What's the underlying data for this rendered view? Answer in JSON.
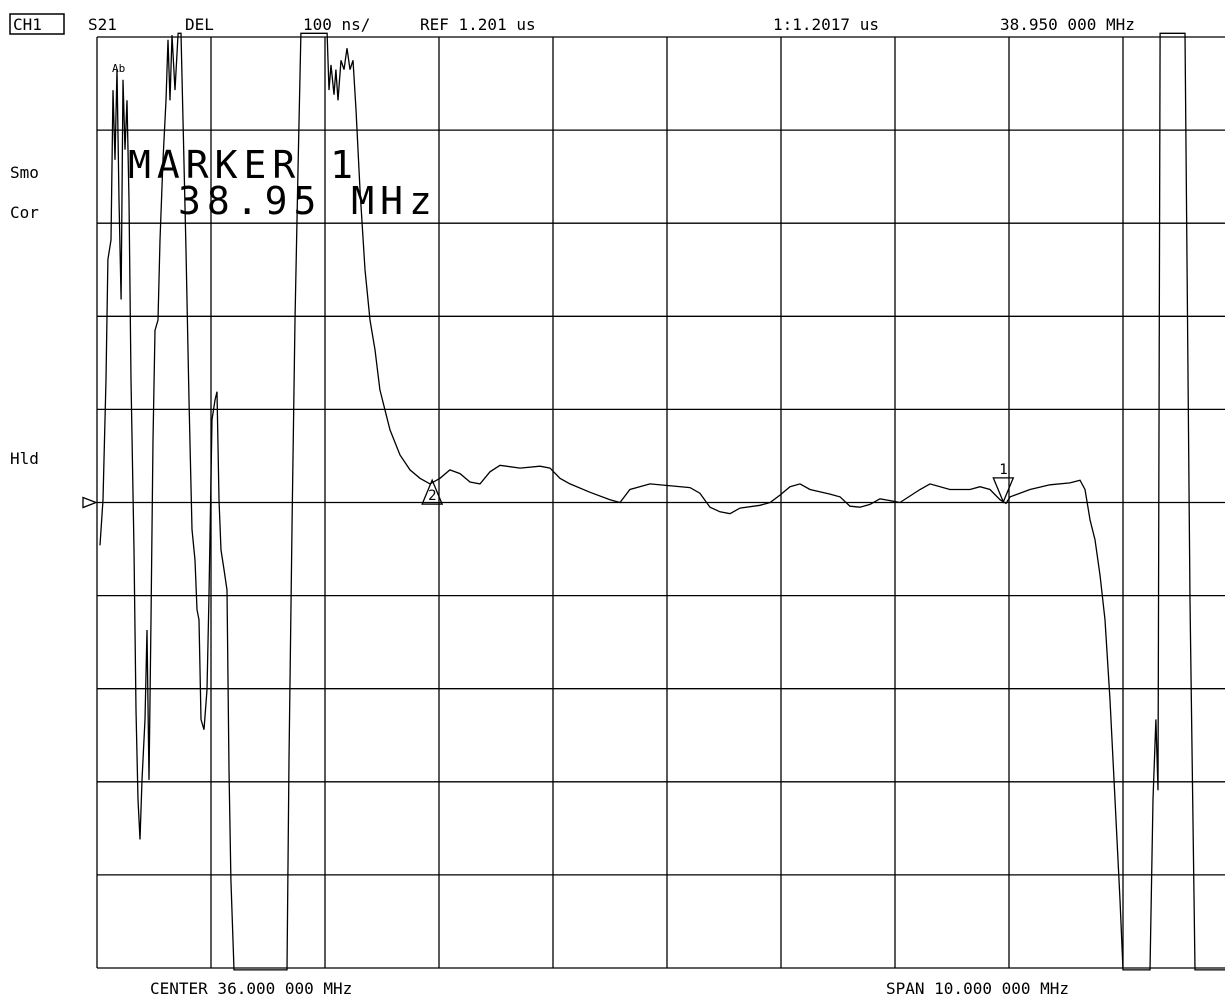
{
  "chart_data": {
    "type": "line",
    "header": {
      "channel": "CH1",
      "parameter": "S21",
      "format": "DEL",
      "scale": "100 ns/",
      "reference": "REF 1.201 us",
      "marker_readout": "1:1.2017 us",
      "marker_frequency": "38.950 000 MHz"
    },
    "status": [
      "Smo",
      "Cor",
      "Hld"
    ],
    "annotation_small": "Ab",
    "annotation": [
      "MARKER 1",
      "38.95 MHz"
    ],
    "footer": {
      "center": "CENTER 36.000 000 MHz",
      "span": "SPAN 10.000 000 MHz"
    },
    "color": "#000000",
    "ref_level": 1.201,
    "xlim": [
      31,
      41
    ],
    "ylim": [
      0.701,
      1.701
    ],
    "xticks": [
      31,
      32,
      33,
      34,
      35,
      36,
      37,
      38,
      39,
      40,
      41
    ],
    "yticks": [
      0.701,
      0.801,
      0.901,
      1.001,
      1.101,
      1.201,
      1.301,
      1.401,
      1.501,
      1.601,
      1.701
    ],
    "grid": true,
    "markers": [
      {
        "label": "1",
        "x": 38.95,
        "y": 1.2017,
        "direction": "down"
      },
      {
        "label": "2",
        "x": 33.94,
        "y": 1.225,
        "direction": "up"
      }
    ],
    "x": [
      31.026,
      31.053,
      31.079,
      31.096,
      31.123,
      31.14,
      31.158,
      31.175,
      31.193,
      31.211,
      31.228,
      31.246,
      31.263,
      31.281,
      31.298,
      31.325,
      31.342,
      31.36,
      31.377,
      31.395,
      31.421,
      31.439,
      31.456,
      31.474,
      31.491,
      31.509,
      31.535,
      31.553,
      31.579,
      31.605,
      31.623,
      31.64,
      31.658,
      31.684,
      31.711,
      31.737,
      31.754,
      31.781,
      31.807,
      31.833,
      31.86,
      31.877,
      31.895,
      31.912,
      31.939,
      31.965,
      31.982,
      32.009,
      32.035,
      32.053,
      32.07,
      32.088,
      32.114,
      32.14,
      32.158,
      32.175,
      32.202,
      32.667,
      32.684,
      32.711,
      32.737,
      32.763,
      32.789,
      33.018,
      33.035,
      33.053,
      33.079,
      33.096,
      33.114,
      33.14,
      33.167,
      33.193,
      33.219,
      33.246,
      33.272,
      33.307,
      33.351,
      33.395,
      33.439,
      33.482,
      33.57,
      33.658,
      33.746,
      33.833,
      33.921,
      34.009,
      34.096,
      34.184,
      34.272,
      34.36,
      34.447,
      34.535,
      34.711,
      34.886,
      34.974,
      35.061,
      35.149,
      35.325,
      35.5,
      35.588,
      35.675,
      35.851,
      36.202,
      36.289,
      36.377,
      36.465,
      36.553,
      36.64,
      36.816,
      36.904,
      36.991,
      37.079,
      37.167,
      37.254,
      37.43,
      37.518,
      37.605,
      37.693,
      37.781,
      37.868,
      38.044,
      38.219,
      38.307,
      38.482,
      38.658,
      38.746,
      38.833,
      38.921,
      38.974,
      39.009,
      39.184,
      39.36,
      39.535,
      39.623,
      39.667,
      39.711,
      39.754,
      39.798,
      39.842,
      39.886,
      39.93,
      39.974,
      40.0,
      40.237,
      40.263,
      40.289,
      40.307,
      40.325,
      40.544,
      40.588,
      40.632,
      40.895
    ],
    "values": [
      1.155,
      1.204,
      1.333,
      1.462,
      1.483,
      1.644,
      1.569,
      1.666,
      1.526,
      1.419,
      1.655,
      1.58,
      1.633,
      1.526,
      1.333,
      1.15,
      0.978,
      0.882,
      0.839,
      0.903,
      0.968,
      1.064,
      0.903,
      1.075,
      1.268,
      1.386,
      1.397,
      1.483,
      1.569,
      1.633,
      1.698,
      1.633,
      1.703,
      1.644,
      1.705,
      1.705,
      1.612,
      1.472,
      1.311,
      1.172,
      1.139,
      1.086,
      1.075,
      0.968,
      0.957,
      1.0,
      1.096,
      1.29,
      1.311,
      1.32,
      1.204,
      1.15,
      1.129,
      1.107,
      0.914,
      0.796,
      0.699,
      0.699,
      0.925,
      1.182,
      1.397,
      1.558,
      1.705,
      1.705,
      1.644,
      1.671,
      1.639,
      1.666,
      1.633,
      1.676,
      1.666,
      1.689,
      1.666,
      1.676,
      1.623,
      1.537,
      1.451,
      1.397,
      1.365,
      1.322,
      1.279,
      1.252,
      1.236,
      1.227,
      1.221,
      1.227,
      1.236,
      1.232,
      1.223,
      1.221,
      1.234,
      1.241,
      1.238,
      1.24,
      1.238,
      1.227,
      1.221,
      1.212,
      1.204,
      1.201,
      1.215,
      1.221,
      1.217,
      1.211,
      1.196,
      1.191,
      1.189,
      1.195,
      1.198,
      1.201,
      1.209,
      1.218,
      1.221,
      1.215,
      1.21,
      1.207,
      1.197,
      1.196,
      1.199,
      1.205,
      1.201,
      1.215,
      1.221,
      1.215,
      1.215,
      1.218,
      1.215,
      1.204,
      1.2,
      1.207,
      1.215,
      1.22,
      1.222,
      1.225,
      1.215,
      1.182,
      1.161,
      1.123,
      1.075,
      0.989,
      0.882,
      0.774,
      0.699,
      0.699,
      0.882,
      0.968,
      0.892,
      1.705,
      1.705,
      1.096,
      0.699,
      0.699
    ]
  }
}
